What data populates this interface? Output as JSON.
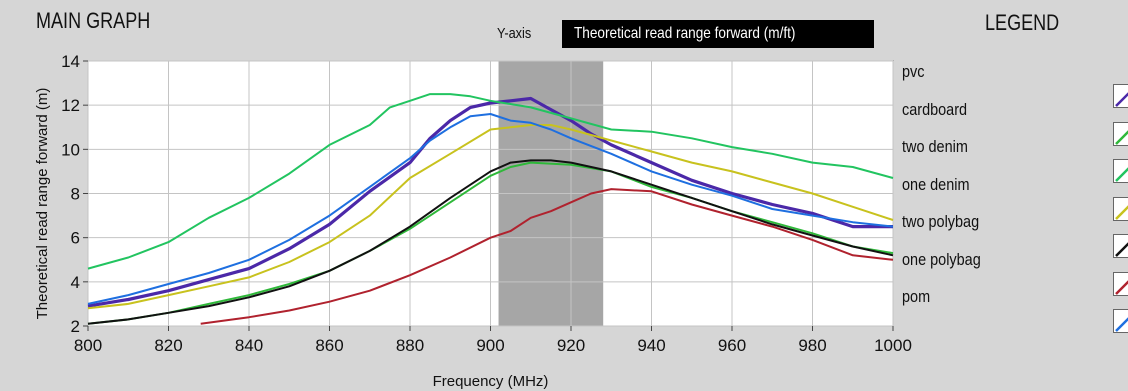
{
  "panel": {
    "title": "MAIN GRAPH",
    "legend_title": "LEGEND",
    "yaxis_selector_label": "Y-axis",
    "yaxis_selector_value": "Theoretical read range forward (m/ft)"
  },
  "chart_data": {
    "type": "line",
    "xlabel": "Frequency (MHz)",
    "ylabel": "Theoretical read range forward (m)",
    "xlim": [
      800,
      1000
    ],
    "ylim": [
      2,
      14
    ],
    "xticks": [
      800,
      820,
      840,
      860,
      880,
      900,
      920,
      940,
      960,
      980,
      1000
    ],
    "yticks": [
      2,
      4,
      6,
      8,
      10,
      12,
      14
    ],
    "grid": true,
    "highlight_band": [
      902,
      928
    ],
    "legend_position": "right",
    "series": [
      {
        "name": "pvc",
        "color": "#4b28a8",
        "x": [
          800,
          810,
          820,
          830,
          840,
          850,
          860,
          870,
          880,
          885,
          890,
          895,
          900,
          905,
          910,
          915,
          920,
          925,
          930,
          940,
          950,
          960,
          970,
          980,
          990,
          1000
        ],
        "y": [
          2.9,
          3.2,
          3.6,
          4.1,
          4.6,
          5.5,
          6.6,
          8.1,
          9.4,
          10.5,
          11.3,
          11.9,
          12.1,
          12.2,
          12.3,
          11.8,
          11.3,
          10.7,
          10.2,
          9.4,
          8.6,
          8.0,
          7.5,
          7.1,
          6.5,
          6.5
        ]
      },
      {
        "name": "cardboard",
        "color": "#2fb83a",
        "x": [
          800,
          810,
          820,
          830,
          840,
          850,
          860,
          870,
          880,
          890,
          900,
          905,
          910,
          920,
          930,
          940,
          950,
          960,
          970,
          980,
          990,
          1000
        ],
        "y": [
          2.1,
          2.3,
          2.6,
          3.0,
          3.4,
          3.9,
          4.5,
          5.4,
          6.4,
          7.6,
          8.8,
          9.2,
          9.4,
          9.3,
          9.0,
          8.3,
          7.8,
          7.2,
          6.7,
          6.2,
          5.6,
          5.3
        ]
      },
      {
        "name": "two denim",
        "color": "#22c460",
        "x": [
          800,
          810,
          820,
          830,
          840,
          850,
          860,
          870,
          875,
          880,
          885,
          890,
          895,
          900,
          910,
          920,
          930,
          940,
          950,
          960,
          970,
          980,
          990,
          1000
        ],
        "y": [
          4.6,
          5.1,
          5.8,
          6.9,
          7.8,
          8.9,
          10.2,
          11.1,
          11.9,
          12.2,
          12.5,
          12.5,
          12.4,
          12.2,
          11.9,
          11.4,
          10.9,
          10.8,
          10.5,
          10.1,
          9.8,
          9.4,
          9.2,
          8.7
        ]
      },
      {
        "name": "one denim",
        "color": "#c8c21e",
        "x": [
          800,
          810,
          820,
          830,
          840,
          850,
          860,
          870,
          880,
          890,
          900,
          905,
          910,
          915,
          920,
          930,
          940,
          950,
          960,
          970,
          980,
          990,
          1000
        ],
        "y": [
          2.8,
          3.0,
          3.4,
          3.8,
          4.2,
          4.9,
          5.8,
          7.0,
          8.7,
          9.8,
          10.9,
          11.0,
          11.1,
          11.1,
          10.9,
          10.4,
          9.9,
          9.4,
          9.0,
          8.5,
          8.0,
          7.4,
          6.8
        ]
      },
      {
        "name": "two polybag",
        "color": "#111111",
        "x": [
          800,
          810,
          820,
          830,
          840,
          850,
          860,
          870,
          880,
          890,
          900,
          905,
          910,
          915,
          920,
          930,
          940,
          950,
          960,
          970,
          980,
          990,
          1000
        ],
        "y": [
          2.1,
          2.3,
          2.6,
          2.9,
          3.3,
          3.8,
          4.5,
          5.4,
          6.5,
          7.8,
          9.0,
          9.4,
          9.5,
          9.5,
          9.4,
          9.0,
          8.4,
          7.8,
          7.2,
          6.6,
          6.1,
          5.6,
          5.2
        ]
      },
      {
        "name": "one polybag",
        "color": "#b0222e",
        "x": [
          828,
          840,
          850,
          860,
          870,
          880,
          890,
          900,
          905,
          910,
          915,
          920,
          925,
          930,
          940,
          950,
          960,
          970,
          980,
          990,
          1000
        ],
        "y": [
          2.1,
          2.4,
          2.7,
          3.1,
          3.6,
          4.3,
          5.1,
          6.0,
          6.3,
          6.9,
          7.2,
          7.6,
          8.0,
          8.2,
          8.1,
          7.5,
          7.0,
          6.5,
          5.9,
          5.2,
          5.0
        ]
      },
      {
        "name": "pom",
        "color": "#1e6fe0",
        "x": [
          800,
          810,
          820,
          830,
          840,
          850,
          860,
          870,
          880,
          885,
          890,
          895,
          900,
          905,
          910,
          915,
          920,
          930,
          940,
          950,
          960,
          970,
          980,
          990,
          1000
        ],
        "y": [
          3.0,
          3.4,
          3.9,
          4.4,
          5.0,
          5.9,
          7.0,
          8.3,
          9.6,
          10.4,
          11.0,
          11.5,
          11.6,
          11.3,
          11.2,
          10.9,
          10.5,
          9.8,
          9.0,
          8.4,
          7.9,
          7.3,
          7.0,
          6.7,
          6.5
        ]
      }
    ]
  }
}
